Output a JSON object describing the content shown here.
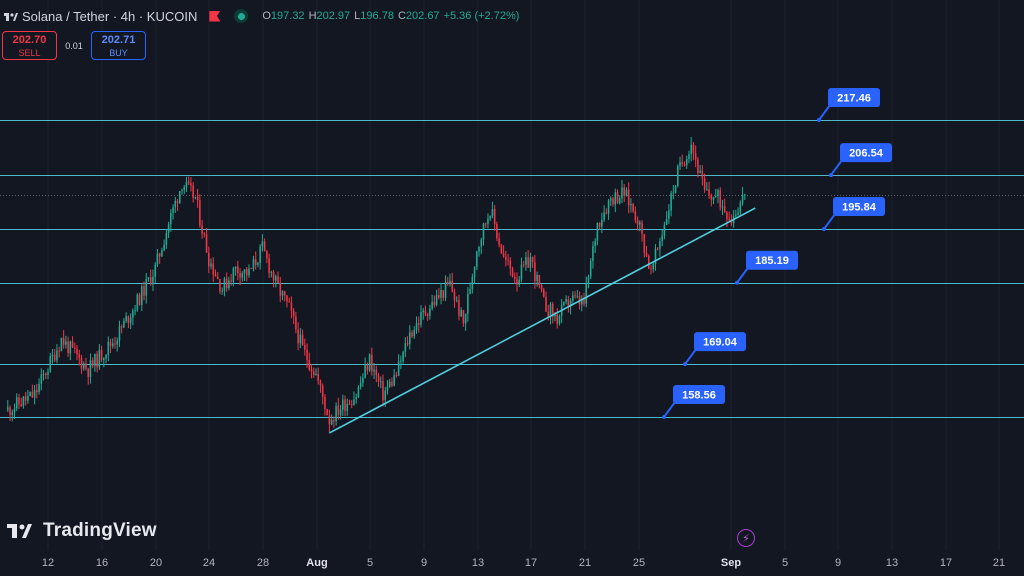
{
  "header": {
    "symbol": "Solana / Tether · 4h · KUCOIN",
    "ohlc": {
      "o_label": "O",
      "o": "197.32",
      "h_label": "H",
      "h": "202.97",
      "l_label": "L",
      "l": "196.78",
      "c_label": "C",
      "c": "202.67",
      "change": "+5.36 (+2.72%)"
    }
  },
  "trade": {
    "sell_price": "202.70",
    "sell_label": "SELL",
    "spread": "0.01",
    "buy_price": "202.71",
    "buy_label": "BUY"
  },
  "branding": {
    "name": "TradingView"
  },
  "colors": {
    "background": "#131722",
    "up": "#22ab94",
    "down": "#f23645",
    "level_line": "#4fb9c9",
    "label": "#2962ff"
  },
  "chart_data": {
    "type": "candlestick",
    "timeframe": "4h",
    "x_ticks": [
      "12",
      "16",
      "20",
      "24",
      "28",
      "Aug",
      "5",
      "9",
      "13",
      "17",
      "21",
      "25",
      "Sep",
      "5",
      "9",
      "13",
      "17",
      "21"
    ],
    "y_range": [
      150,
      225
    ],
    "horizontal_levels": [
      217.46,
      206.54,
      195.84,
      185.19,
      169.04,
      158.56
    ],
    "trendline": {
      "from": [
        "Aug 2",
        155.4
      ],
      "to": [
        "Sep 1",
        197.5
      ]
    },
    "current_price": 202.67,
    "approx_close_path": [
      {
        "x": "Jul 9",
        "y": 160
      },
      {
        "x": "Jul 11",
        "y": 163
      },
      {
        "x": "Jul 13",
        "y": 174
      },
      {
        "x": "Jul 15",
        "y": 168
      },
      {
        "x": "Jul 17",
        "y": 174
      },
      {
        "x": "Jul 19",
        "y": 183
      },
      {
        "x": "Jul 20",
        "y": 188
      },
      {
        "x": "Jul 21",
        "y": 197
      },
      {
        "x": "Jul 22",
        "y": 205
      },
      {
        "x": "Jul 23",
        "y": 202
      },
      {
        "x": "Jul 24",
        "y": 190
      },
      {
        "x": "Jul 25",
        "y": 184
      },
      {
        "x": "Jul 26",
        "y": 188
      },
      {
        "x": "Jul 27",
        "y": 187
      },
      {
        "x": "Jul 28",
        "y": 192
      },
      {
        "x": "Jul 29",
        "y": 185
      },
      {
        "x": "Jul 30",
        "y": 180
      },
      {
        "x": "Jul 31",
        "y": 172
      },
      {
        "x": "Aug 1",
        "y": 167
      },
      {
        "x": "Aug 2",
        "y": 158
      },
      {
        "x": "Aug 3",
        "y": 161
      },
      {
        "x": "Aug 4",
        "y": 163
      },
      {
        "x": "Aug 5",
        "y": 170
      },
      {
        "x": "Aug 6",
        "y": 163
      },
      {
        "x": "Aug 7",
        "y": 167
      },
      {
        "x": "Aug 8",
        "y": 175
      },
      {
        "x": "Aug 9",
        "y": 179
      },
      {
        "x": "Aug 10",
        "y": 182
      },
      {
        "x": "Aug 11",
        "y": 185
      },
      {
        "x": "Aug 12",
        "y": 177
      },
      {
        "x": "Aug 13",
        "y": 192
      },
      {
        "x": "Aug 14",
        "y": 200
      },
      {
        "x": "Aug 15",
        "y": 190
      },
      {
        "x": "Aug 16",
        "y": 186
      },
      {
        "x": "Aug 17",
        "y": 190
      },
      {
        "x": "Aug 18",
        "y": 181
      },
      {
        "x": "Aug 19",
        "y": 178
      },
      {
        "x": "Aug 20",
        "y": 182
      },
      {
        "x": "Aug 21",
        "y": 181
      },
      {
        "x": "Aug 22",
        "y": 197
      },
      {
        "x": "Aug 23",
        "y": 202
      },
      {
        "x": "Aug 24",
        "y": 203
      },
      {
        "x": "Aug 25",
        "y": 198
      },
      {
        "x": "Aug 26",
        "y": 187
      },
      {
        "x": "Aug 27",
        "y": 197
      },
      {
        "x": "Aug 28",
        "y": 207
      },
      {
        "x": "Aug 29",
        "y": 213
      },
      {
        "x": "Aug 30",
        "y": 203
      },
      {
        "x": "Aug 31",
        "y": 202
      },
      {
        "x": "Sep 1",
        "y": 198
      },
      {
        "x": "Sep 2",
        "y": 202.67
      }
    ]
  }
}
